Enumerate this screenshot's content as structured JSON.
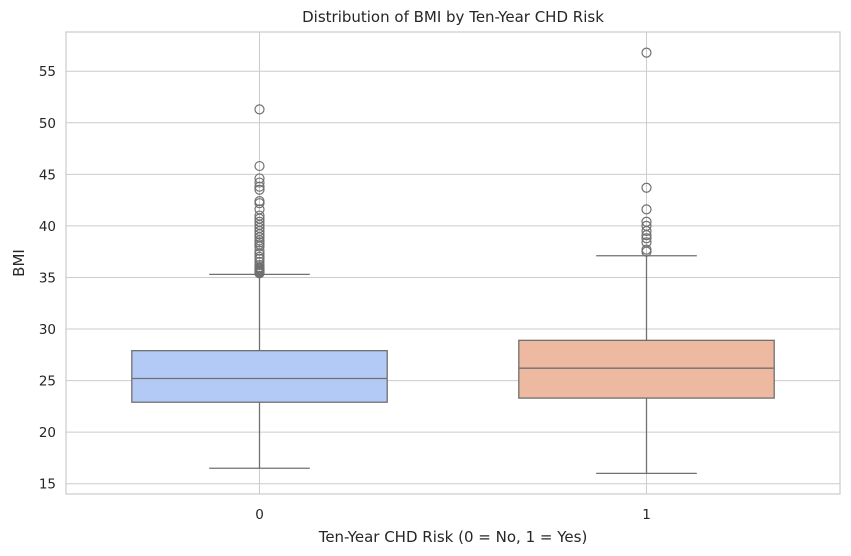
{
  "chart_data": {
    "type": "boxplot",
    "title": "Distribution of BMI by Ten-Year CHD Risk",
    "xlabel": "Ten-Year CHD Risk (0 = No, 1 = Yes)",
    "ylabel": "BMI",
    "categories": [
      "0",
      "1"
    ],
    "ylim": [
      14.0,
      58.8
    ],
    "yticks": [
      15,
      20,
      25,
      30,
      35,
      40,
      45,
      50,
      55
    ],
    "grid": true,
    "colors": {
      "0": "#b3c9f6",
      "1": "#edb9a0",
      "line": "#707070",
      "grid": "#cccccc",
      "spine": "#cccccc"
    },
    "boxes": [
      {
        "category": "0",
        "whisker_low": 16.5,
        "q1": 22.9,
        "median": 25.2,
        "q3": 27.9,
        "whisker_high": 35.3,
        "outliers": [
          35.4,
          35.5,
          35.6,
          35.7,
          35.8,
          35.9,
          36.0,
          36.2,
          36.5,
          36.8,
          37.0,
          37.3,
          37.6,
          38.0,
          38.2,
          38.4,
          38.6,
          38.9,
          39.2,
          39.5,
          39.8,
          40.1,
          40.4,
          40.7,
          41.0,
          41.6,
          42.2,
          42.4,
          43.5,
          43.8,
          44.2,
          44.6,
          45.8,
          51.3
        ]
      },
      {
        "category": "1",
        "whisker_low": 16.0,
        "q1": 23.3,
        "median": 26.2,
        "q3": 28.9,
        "whisker_high": 37.1,
        "outliers": [
          37.5,
          37.7,
          38.4,
          38.8,
          39.1,
          39.5,
          40.0,
          40.4,
          41.6,
          43.7,
          56.8
        ]
      }
    ]
  }
}
